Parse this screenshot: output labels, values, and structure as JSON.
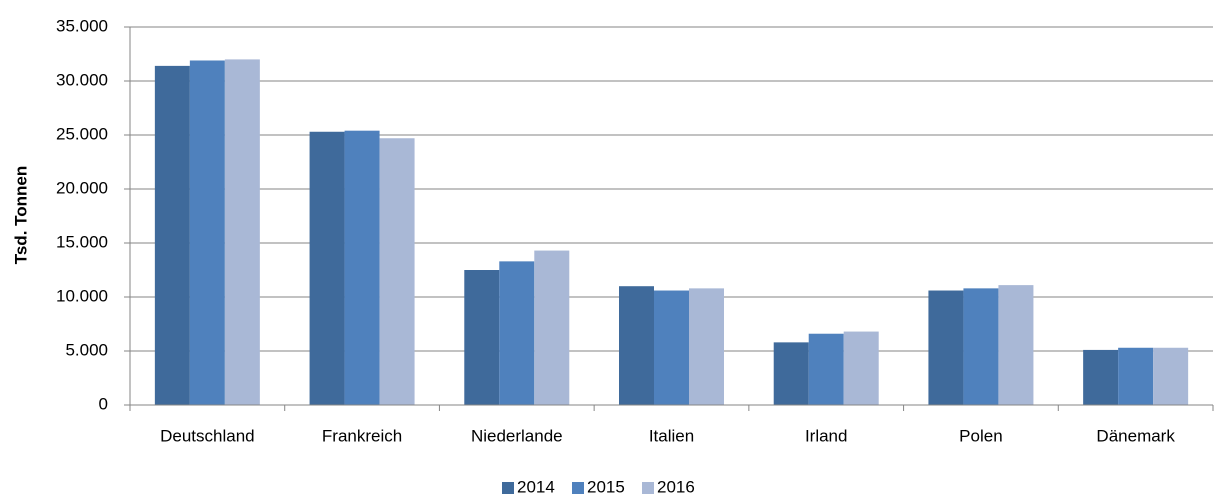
{
  "chart_data": {
    "type": "bar",
    "y_label": "Tsd. Tonnen",
    "categories": [
      "Deutschland",
      "Frankreich",
      "Niederlande",
      "Italien",
      "Irland",
      "Polen",
      "Dänemark"
    ],
    "series": [
      {
        "name": "2014",
        "color": "#3f6a9b",
        "values": [
          31400,
          25300,
          12500,
          11000,
          5800,
          10600,
          5100
        ]
      },
      {
        "name": "2015",
        "color": "#4f81bd",
        "values": [
          31900,
          25400,
          13300,
          10600,
          6600,
          10800,
          5300
        ]
      },
      {
        "name": "2016",
        "color": "#a9b8d6",
        "values": [
          32000,
          24700,
          14300,
          10800,
          6800,
          11100,
          5300
        ]
      }
    ],
    "ylim": [
      0,
      35000
    ],
    "yticks": [
      0,
      {
        "value": 5000,
        "label": "5.000"
      },
      {
        "value": 10000,
        "label": "10.000"
      },
      {
        "value": 15000,
        "label": "15.000"
      },
      {
        "value": 20000,
        "label": "20.000"
      },
      {
        "value": 25000,
        "label": "25.000"
      },
      {
        "value": 30000,
        "label": "30.000"
      },
      {
        "value": 35000,
        "label": "35.000"
      }
    ],
    "grid": true,
    "legend": "bottom"
  }
}
